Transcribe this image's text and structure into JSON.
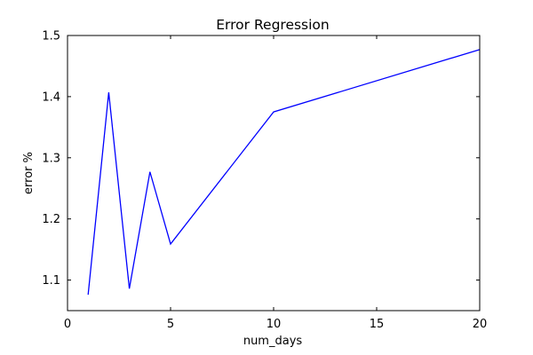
{
  "chart_data": {
    "type": "line",
    "title": "Error Regression",
    "xlabel": "num_days",
    "ylabel": "error %",
    "xlim": [
      0,
      20
    ],
    "ylim": [
      1.05,
      1.5
    ],
    "xticks": [
      0,
      5,
      10,
      15,
      20
    ],
    "xtick_labels": [
      "0",
      "5",
      "10",
      "15",
      "20"
    ],
    "yticks": [
      1.1,
      1.2,
      1.3,
      1.4,
      1.5
    ],
    "ytick_labels": [
      "1.1",
      "1.2",
      "1.3",
      "1.4",
      "1.5"
    ],
    "grid": false,
    "series": [
      {
        "color": "#0000ff",
        "x": [
          1,
          2,
          3,
          4,
          5,
          10,
          20
        ],
        "y": [
          1.076,
          1.407,
          1.086,
          1.277,
          1.159,
          1.375,
          1.477
        ]
      }
    ]
  }
}
